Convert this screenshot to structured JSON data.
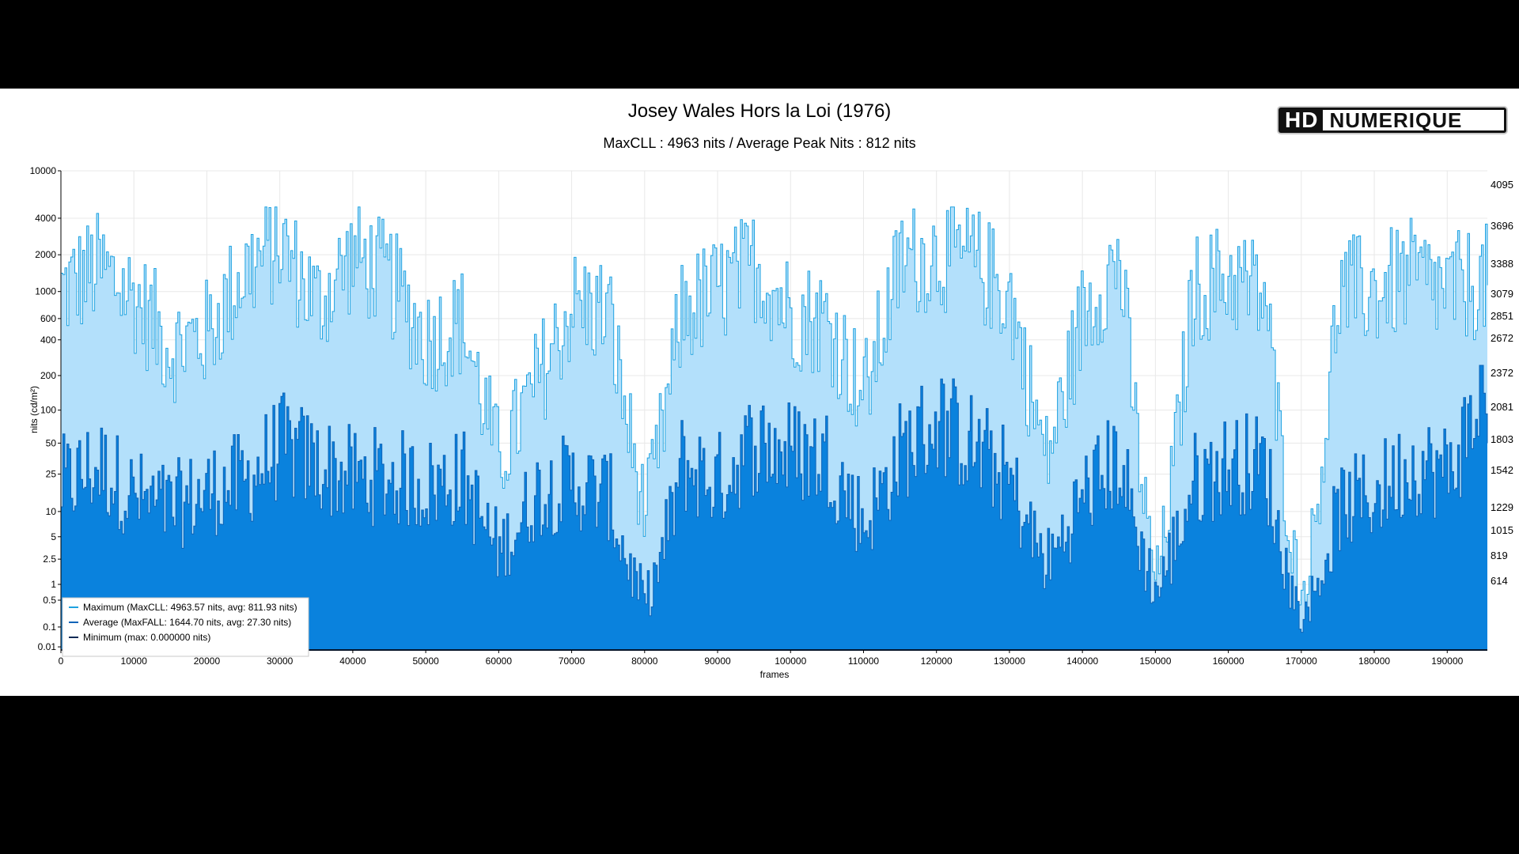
{
  "header": {
    "title": "Josey Wales Hors la Loi (1976)",
    "subtitle": "MaxCLL : 4963 nits / Average Peak Nits : 812 nits"
  },
  "logo": {
    "text_hd": "HD",
    "text_brand": "NUMERIQUE"
  },
  "colors": {
    "background": "#000000",
    "panel": "#ffffff",
    "max_fill": "#b3e0fb",
    "max_line": "#1ea2e0",
    "avg_fill": "#0a82dd",
    "avg_line": "#0c63b8",
    "min_line": "#0a2a55"
  },
  "chart_data": {
    "type": "area",
    "xlabel": "frames",
    "ylabel": "nits (cd/m²)",
    "xlim": [
      0,
      195500
    ],
    "ylim": [
      0.005,
      10000
    ],
    "y_scale": "pq",
    "x_ticks": [
      "0",
      "10000",
      "20000",
      "30000",
      "40000",
      "50000",
      "60000",
      "70000",
      "80000",
      "90000",
      "100000",
      "110000",
      "120000",
      "130000",
      "140000",
      "150000",
      "160000",
      "170000",
      "180000",
      "190000"
    ],
    "y_ticks": [
      "10000",
      "4000",
      "2000",
      "1000",
      "600",
      "400",
      "200",
      "100",
      "50",
      "25",
      "10",
      "5",
      "2.5",
      "1",
      "0.5",
      "0.1",
      "0.01"
    ],
    "y_right_ticks": [
      "4095",
      "3696",
      "3388",
      "3079",
      "2851",
      "2672",
      "2372",
      "2081",
      "1803",
      "1542",
      "1229",
      "1015",
      "819",
      "614"
    ],
    "legend_position": "bottom-left",
    "series": [
      {
        "name": "Maximum (MaxCLL: 4963.57 nits, avg: 811.93 nits)",
        "x": [
          0,
          5000,
          10000,
          15000,
          20000,
          25000,
          30000,
          35000,
          40000,
          45000,
          50000,
          55000,
          60000,
          65000,
          70000,
          75000,
          80000,
          85000,
          90000,
          95000,
          100000,
          105000,
          110000,
          115000,
          120000,
          125000,
          130000,
          135000,
          140000,
          145000,
          150000,
          155000,
          160000,
          165000,
          170000,
          175000,
          180000,
          185000,
          190000,
          195000
        ],
        "values": [
          900,
          1400,
          800,
          300,
          400,
          1300,
          2200,
          700,
          1800,
          1100,
          350,
          500,
          30,
          150,
          700,
          600,
          8,
          600,
          900,
          1500,
          600,
          500,
          120,
          1600,
          1800,
          1600,
          800,
          30,
          600,
          1700,
          1,
          900,
          1200,
          800,
          0.5,
          900,
          900,
          1200,
          900,
          1100
        ]
      },
      {
        "name": "Average (MaxFALL: 1644.70 nits, avg: 27.30 nits)",
        "x": [
          0,
          5000,
          10000,
          15000,
          20000,
          25000,
          30000,
          35000,
          40000,
          45000,
          50000,
          55000,
          60000,
          65000,
          70000,
          75000,
          80000,
          85000,
          90000,
          95000,
          100000,
          105000,
          110000,
          115000,
          120000,
          125000,
          130000,
          135000,
          140000,
          145000,
          150000,
          155000,
          160000,
          165000,
          170000,
          175000,
          180000,
          185000,
          190000,
          195000
        ],
        "values": [
          18,
          30,
          14,
          10,
          16,
          20,
          45,
          30,
          22,
          22,
          18,
          22,
          3,
          15,
          20,
          14,
          0.4,
          30,
          20,
          50,
          40,
          35,
          7,
          40,
          80,
          45,
          20,
          2,
          15,
          35,
          0.7,
          20,
          30,
          30,
          0.2,
          10,
          15,
          30,
          25,
          140
        ]
      },
      {
        "name": "Minimum (max: 0.000000 nits)",
        "x": [
          0,
          195000
        ],
        "values": [
          0,
          0
        ]
      }
    ]
  }
}
